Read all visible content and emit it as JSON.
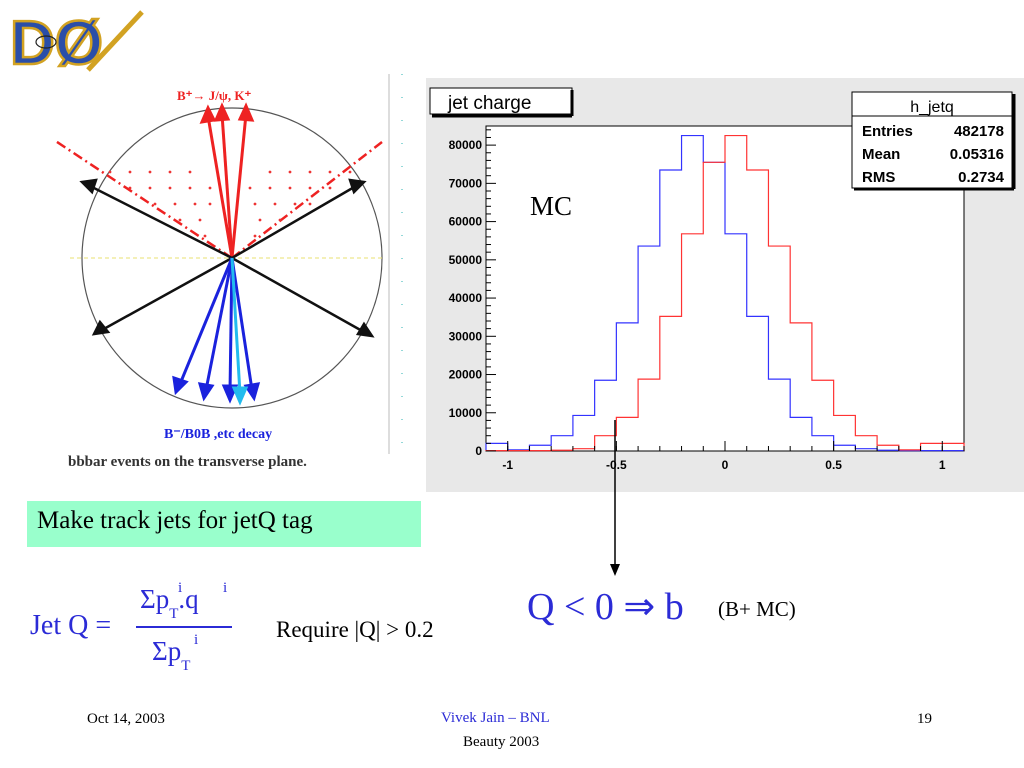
{
  "logo": {
    "text": "DØ"
  },
  "diagram": {
    "top_label": "B⁺→ J/ψ, K⁺",
    "bottom_label": "B⁻/B0B ,etc decay",
    "caption": "bbbar events on the transverse plane."
  },
  "chart_data": {
    "type": "histogram",
    "title": "jet charge",
    "annotation": "MC",
    "xlim": [
      -1.1,
      1.1
    ],
    "ylim": [
      0,
      85000
    ],
    "xticks": [
      -1,
      -0.5,
      0,
      0.5,
      1
    ],
    "xtick_labels": [
      "-1",
      "-0.5",
      "0",
      "0.5",
      "1"
    ],
    "yticks": [
      0,
      10000,
      20000,
      30000,
      40000,
      50000,
      60000,
      70000,
      80000
    ],
    "ytick_labels": [
      "0",
      "10000",
      "20000",
      "30000",
      "40000",
      "50000",
      "60000",
      "70000",
      "80000"
    ],
    "bin_edges": [
      -1.1,
      -1.0,
      -0.9,
      -0.8,
      -0.7,
      -0.6,
      -0.5,
      -0.4,
      -0.3,
      -0.2,
      -0.1,
      0.0,
      0.1,
      0.2,
      0.3,
      0.4,
      0.5,
      0.6,
      0.7,
      0.8,
      0.9,
      1.0,
      1.1
    ],
    "series": [
      {
        "color": "#3333ff",
        "values": [
          2000,
          300,
          1500,
          4000,
          9300,
          18500,
          33500,
          53600,
          73500,
          82500,
          75500,
          56800,
          35200,
          18800,
          8800,
          4000,
          1500,
          600,
          200,
          100,
          100,
          100
        ]
      },
      {
        "color": "#ff3333",
        "values": [
          100,
          100,
          100,
          200,
          600,
          4000,
          8800,
          18800,
          35200,
          56800,
          75500,
          82500,
          73500,
          53600,
          33500,
          18500,
          9300,
          4000,
          1500,
          300,
          2000,
          2000
        ]
      }
    ],
    "stats": {
      "name": "h_jetq",
      "rows": [
        {
          "label": "Entries",
          "value": "482178"
        },
        {
          "label": "Mean",
          "value": "0.05316"
        },
        {
          "label": "RMS",
          "value": "0.2734"
        }
      ]
    }
  },
  "tag_box": {
    "text": "Make track jets for jetQ tag"
  },
  "formula": {
    "lhs": "Jet Q =",
    "numerator_sigma": "Σp",
    "numerator_rest": ".q",
    "sub_T": "T",
    "sup_i": "i",
    "denominator_sigma": "Σp"
  },
  "requirement": {
    "text": "Require |Q| > 0.2"
  },
  "q_condition": {
    "text": "Q < 0 ⇒ b"
  },
  "q_note": {
    "text": "(B+ MC)"
  },
  "footer": {
    "date": "Oct 14, 2003",
    "author": "Vivek Jain – BNL",
    "conference": "Beauty 2003",
    "page": "19"
  }
}
